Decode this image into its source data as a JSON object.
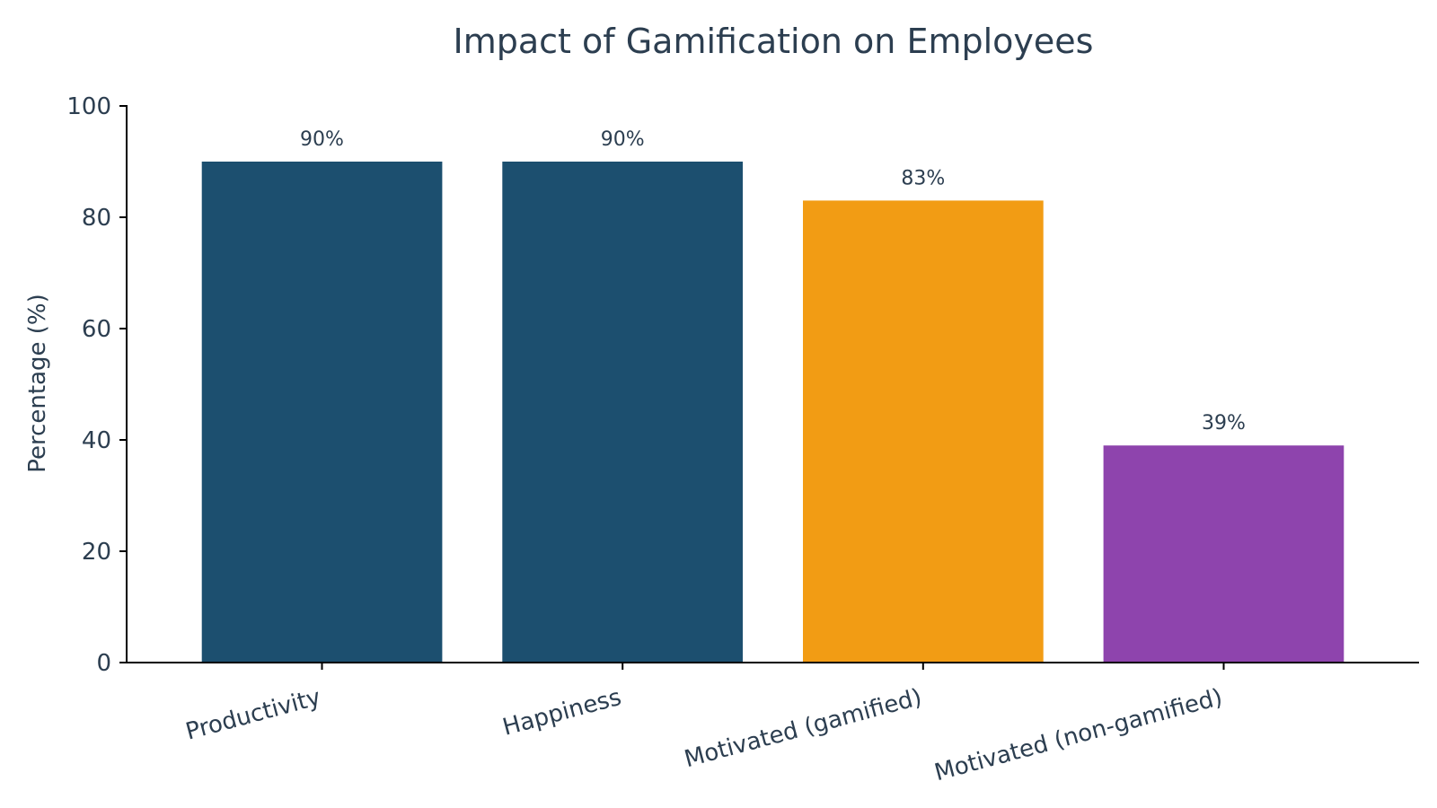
{
  "chart_data": {
    "type": "bar",
    "title": "Impact of Gamification on Employees",
    "xlabel": "",
    "ylabel": "Percentage (%)",
    "ylim": [
      0,
      100
    ],
    "yticks": [
      0,
      20,
      40,
      60,
      80,
      100
    ],
    "categories": [
      "Productivity",
      "Happiness",
      "Motivated (gamified)",
      "Motivated (non-gamified)"
    ],
    "values": [
      90,
      90,
      83,
      39
    ],
    "data_labels": [
      "90%",
      "90%",
      "83%",
      "39%"
    ],
    "bar_colors": [
      "#1c4f6f",
      "#1c4f6f",
      "#f29c14",
      "#8e44ad"
    ],
    "text_color": "#2c3e50",
    "grid": false,
    "legend": "none"
  }
}
